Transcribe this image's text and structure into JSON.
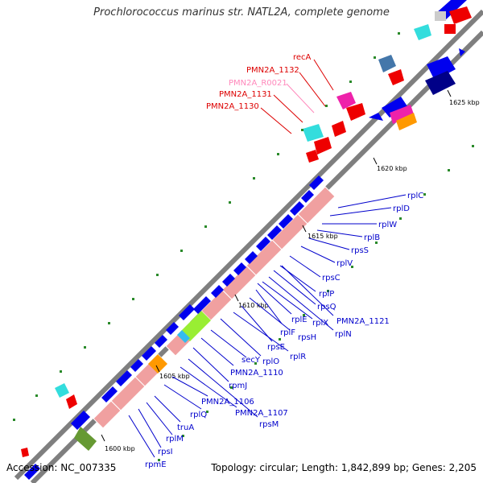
{
  "title": "Prochlorococcus marinus str. NATL2A, complete genome",
  "accession": "Accession: NC_007335",
  "summary": "Topology: circular; Length: 1,842,899 bp; Genes: 2,205",
  "colors": {
    "backbone": "#7f7f7f",
    "forward_gene": "#0000ee",
    "protein_block": "#f0a0a0",
    "red_gene": "#ee0000",
    "cyan_gene": "#33dddd",
    "magenta_gene": "#ee22aa",
    "blue_label": "#0000cc",
    "red_label": "#dd0000",
    "pink_label": "#ff88bb",
    "tick": "#2a8a2a"
  },
  "kbp_labels": [
    "1600 kbp",
    "1605 kbp",
    "1610 kbp",
    "1615 kbp",
    "1620 kbp",
    "1625 kbp"
  ],
  "red_labels": [
    "recA",
    "PMN2A_1132",
    "PMN2A_1131",
    "PMN2A_1130"
  ],
  "pink_labels": [
    "PMN2A_R0021"
  ],
  "upper_right_labels": [
    "rplC",
    "rplD",
    "rplW",
    "rplB",
    "rpsS",
    "rplV",
    "rpsC",
    "rplP",
    "rpsQ",
    "PMN2A_1121",
    "rplN"
  ],
  "lower_labels": [
    "rpmE",
    "rpsI",
    "rplM",
    "truA",
    "rplQ",
    "PMN2A_1106",
    "PMN2A_1107",
    "rpsM",
    "rpmJ",
    "PMN2A_1110",
    "secY",
    "rplO",
    "rplR",
    "rpsE",
    "rpsH",
    "rplF",
    "rplX",
    "rplE"
  ]
}
